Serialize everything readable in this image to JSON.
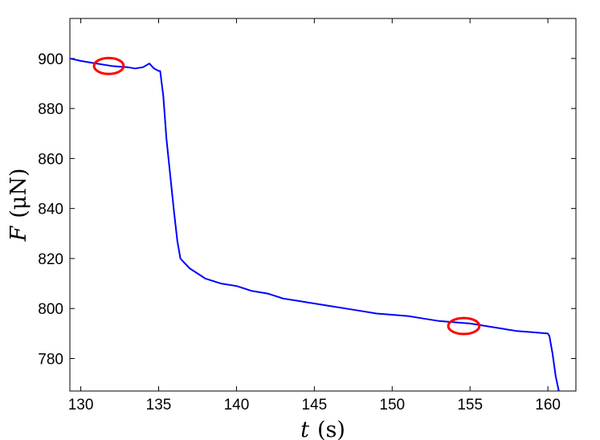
{
  "chart_data": {
    "type": "line",
    "xlabel_var": "t",
    "xlabel_unit": "(s)",
    "ylabel_var": "F",
    "ylabel_unit": "(μN)",
    "xlim": [
      129.3,
      161.8
    ],
    "ylim": [
      767,
      916
    ],
    "xticks": [
      130,
      135,
      140,
      145,
      150,
      155,
      160
    ],
    "yticks": [
      780,
      800,
      820,
      840,
      860,
      880,
      900
    ],
    "grid": false,
    "colors": {
      "line": "#0000ff",
      "marker": "#ff0000",
      "axis": "#000000"
    },
    "series": [
      {
        "x": [
          129.3,
          130.0,
          131.0,
          132.0,
          133.0,
          133.5,
          134.0,
          134.4,
          134.7,
          135.0,
          135.1,
          135.3,
          135.5,
          135.8,
          136.0,
          136.2,
          136.4,
          136.7,
          137.0,
          137.5,
          138.0,
          139.0,
          140.0,
          141.0,
          142.0,
          143.0,
          144.0,
          145.0,
          146.0,
          147.0,
          148.0,
          149.0,
          150.0,
          151.0,
          152.0,
          153.0,
          154.0,
          155.0,
          156.0,
          157.0,
          158.0,
          159.0,
          160.0,
          160.1,
          160.3,
          160.5,
          160.7
        ],
        "y": [
          900,
          899,
          898,
          897,
          896.5,
          896,
          896.5,
          898,
          896,
          895,
          895,
          885,
          868,
          850,
          838,
          827,
          820,
          818,
          816,
          814,
          812,
          810,
          809,
          807,
          806,
          804,
          803,
          802,
          801,
          800,
          799,
          798,
          797.5,
          797,
          796,
          795,
          794.5,
          794,
          793,
          792,
          791,
          790.5,
          790,
          789,
          782,
          773,
          767
        ]
      }
    ],
    "markers": [
      {
        "shape": "ellipse",
        "cx": 131.8,
        "cy": 897,
        "rx": 0.95,
        "ry": 3.2
      },
      {
        "shape": "ellipse",
        "cx": 154.6,
        "cy": 793,
        "rx": 1.0,
        "ry": 3.2
      }
    ]
  }
}
